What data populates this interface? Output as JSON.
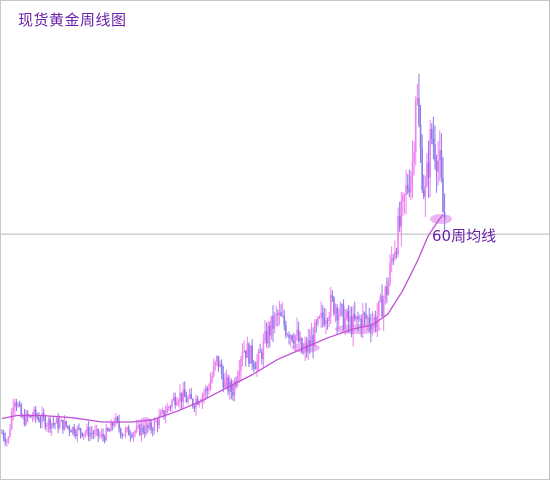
{
  "chart_data": {
    "type": "candlestick",
    "title": "现货黄金周线图",
    "xlabel": "",
    "ylabel": "",
    "ylim": [
      0,
      1000
    ],
    "grid": false,
    "reference_line": 560,
    "ma_label": "60周均线",
    "colors": {
      "up": "#f080f0",
      "down": "#8878e8",
      "ma": "#c050d8",
      "highlight": "#e6a8ee",
      "reference": "#b8b8b8"
    },
    "price_path": [
      [
        0,
        100
      ],
      [
        6,
        80
      ],
      [
        12,
        190
      ],
      [
        20,
        130
      ],
      [
        32,
        140
      ],
      [
        45,
        125
      ],
      [
        60,
        120
      ],
      [
        75,
        105
      ],
      [
        90,
        100
      ],
      [
        100,
        90
      ],
      [
        108,
        105
      ],
      [
        112,
        130
      ],
      [
        120,
        100
      ],
      [
        135,
        105
      ],
      [
        148,
        110
      ],
      [
        160,
        140
      ],
      [
        175,
        190
      ],
      [
        190,
        170
      ],
      [
        205,
        200
      ],
      [
        215,
        270
      ],
      [
        222,
        215
      ],
      [
        230,
        195
      ],
      [
        240,
        300
      ],
      [
        255,
        260
      ],
      [
        265,
        330
      ],
      [
        275,
        370
      ],
      [
        285,
        340
      ],
      [
        295,
        320
      ],
      [
        300,
        280
      ],
      [
        310,
        320
      ],
      [
        325,
        390
      ],
      [
        332,
        400
      ],
      [
        340,
        365
      ],
      [
        350,
        350
      ],
      [
        360,
        365
      ],
      [
        372,
        360
      ],
      [
        378,
        390
      ],
      [
        385,
        440
      ],
      [
        390,
        520
      ],
      [
        398,
        590
      ],
      [
        405,
        680
      ],
      [
        410,
        730
      ],
      [
        413,
        910
      ],
      [
        417,
        760
      ],
      [
        422,
        640
      ],
      [
        428,
        790
      ],
      [
        433,
        760
      ],
      [
        437,
        710
      ],
      [
        440,
        610
      ],
      [
        443,
        590
      ]
    ],
    "ma_path": [
      [
        0,
        133
      ],
      [
        15,
        140
      ],
      [
        40,
        140
      ],
      [
        70,
        135
      ],
      [
        100,
        125
      ],
      [
        130,
        125
      ],
      [
        150,
        130
      ],
      [
        175,
        150
      ],
      [
        200,
        175
      ],
      [
        225,
        205
      ],
      [
        250,
        235
      ],
      [
        275,
        270
      ],
      [
        300,
        295
      ],
      [
        325,
        320
      ],
      [
        350,
        340
      ],
      [
        370,
        350
      ],
      [
        385,
        375
      ],
      [
        400,
        430
      ],
      [
        415,
        500
      ],
      [
        425,
        555
      ],
      [
        435,
        590
      ],
      [
        440,
        605
      ]
    ],
    "touch_points": [
      {
        "x": 143,
        "y": 125,
        "w": 6
      },
      {
        "x": 229,
        "y": 210,
        "w": 8
      },
      {
        "x": 303,
        "y": 297,
        "w": 22
      },
      {
        "x": 355,
        "y": 340,
        "w": 40
      },
      {
        "x": 438,
        "y": 595,
        "w": 16
      }
    ]
  }
}
